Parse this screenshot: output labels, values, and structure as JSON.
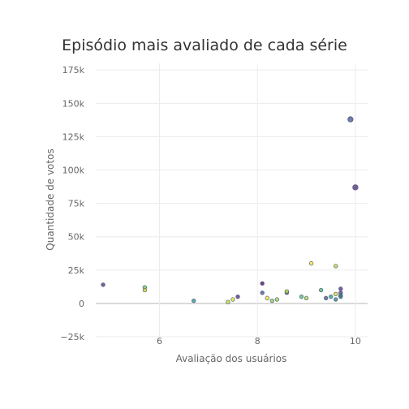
{
  "chart_data": {
    "type": "scatter",
    "title": "Episódio mais avaliado de cada série",
    "xlabel": "Avaliação dos usuários",
    "ylabel": "Quantidade de votos",
    "xlim": [
      4.7,
      10.25
    ],
    "ylim": [
      -25000,
      180000
    ],
    "xticks": [
      6,
      8,
      10
    ],
    "xtick_labels": [
      "6",
      "8",
      "10"
    ],
    "yticks": [
      -25000,
      0,
      25000,
      50000,
      75000,
      100000,
      125000,
      150000,
      175000
    ],
    "ytick_labels": [
      "−25k",
      "0",
      "25k",
      "50k",
      "75k",
      "100k",
      "125k",
      "150k",
      "175k"
    ],
    "grid": true,
    "legend": "none",
    "points": [
      {
        "x": 4.85,
        "y": 14000,
        "color": "#472c7a"
      },
      {
        "x": 5.7,
        "y": 12000,
        "color": "#5ec962"
      },
      {
        "x": 5.7,
        "y": 10000,
        "color": "#bddf26"
      },
      {
        "x": 6.7,
        "y": 2000,
        "color": "#21918c"
      },
      {
        "x": 7.4,
        "y": 1000,
        "color": "#b5de2b"
      },
      {
        "x": 7.5,
        "y": 3000,
        "color": "#d8e219"
      },
      {
        "x": 7.6,
        "y": 5000,
        "color": "#482475"
      },
      {
        "x": 8.1,
        "y": 15000,
        "color": "#440154"
      },
      {
        "x": 8.1,
        "y": 8000,
        "color": "#3b528b"
      },
      {
        "x": 8.2,
        "y": 4000,
        "color": "#fde725"
      },
      {
        "x": 8.3,
        "y": 2000,
        "color": "#7ad151"
      },
      {
        "x": 8.4,
        "y": 3000,
        "color": "#8fd744"
      },
      {
        "x": 8.6,
        "y": 8000,
        "color": "#31688e"
      },
      {
        "x": 8.6,
        "y": 9000,
        "color": "#b8de29"
      },
      {
        "x": 8.9,
        "y": 5000,
        "color": "#4ac16d"
      },
      {
        "x": 9.0,
        "y": 4000,
        "color": "#a0da39"
      },
      {
        "x": 9.1,
        "y": 30000,
        "color": "#fde725"
      },
      {
        "x": 9.3,
        "y": 10000,
        "color": "#35b779"
      },
      {
        "x": 9.4,
        "y": 4000,
        "color": "#3b528b"
      },
      {
        "x": 9.5,
        "y": 5000,
        "color": "#1fa187"
      },
      {
        "x": 9.6,
        "y": 28000,
        "color": "#a5db36"
      },
      {
        "x": 9.6,
        "y": 7000,
        "color": "#d0e11c"
      },
      {
        "x": 9.6,
        "y": 3000,
        "color": "#2a788e"
      },
      {
        "x": 9.7,
        "y": 11000,
        "color": "#472d7b"
      },
      {
        "x": 9.7,
        "y": 8000,
        "color": "#453882"
      },
      {
        "x": 9.7,
        "y": 6000,
        "color": "#1f9e89"
      },
      {
        "x": 9.7,
        "y": 5000,
        "color": "#2c728e"
      },
      {
        "x": 9.9,
        "y": 138000,
        "color": "#3b528b",
        "size": 6
      },
      {
        "x": 10.0,
        "y": 87000,
        "color": "#472c7a",
        "size": 6
      }
    ]
  }
}
